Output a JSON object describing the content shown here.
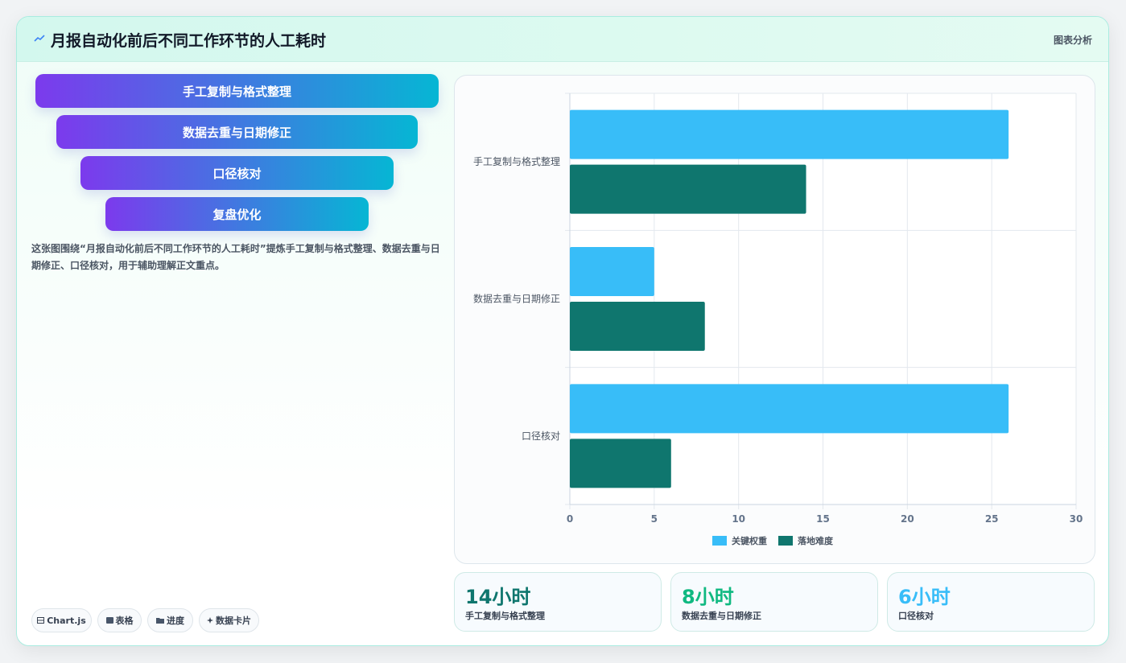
{
  "header": {
    "title": "月报自动化前后不同工作环节的人工耗时",
    "tag": "图表分析"
  },
  "funnel": {
    "items": [
      "手工复制与格式整理",
      "数据去重与日期修正",
      "口径核对",
      "复盘优化"
    ]
  },
  "description": "这张图围绕“月报自动化前后不同工作环节的人工耗时”提炼手工复制与格式整理、数据去重与日期修正、口径核对，用于辅助理解正文重点。",
  "footer_tags": [
    {
      "icon": "chart-icon",
      "label": "Chart.js"
    },
    {
      "icon": "table-icon",
      "label": "表格"
    },
    {
      "icon": "progress-icon",
      "label": "进度"
    },
    {
      "icon": "sparkle-icon",
      "label": "数据卡片"
    }
  ],
  "stats": [
    {
      "value": "14小时",
      "label": "手工复制与格式整理",
      "color": "#0f766e"
    },
    {
      "value": "8小时",
      "label": "数据去重与日期修正",
      "color": "#10b981"
    },
    {
      "value": "6小时",
      "label": "口径核对",
      "color": "#38bdf8"
    }
  ],
  "colors": {
    "series_1": "#38bdf8",
    "series_2": "#0f766e",
    "funnel_start": "#7c3aed",
    "funnel_end": "#06b6d4"
  },
  "chart_data": {
    "type": "bar",
    "orientation": "horizontal",
    "categories": [
      "手工复制与格式整理",
      "数据去重与日期修正",
      "口径核对"
    ],
    "series": [
      {
        "name": "关键权重",
        "values": [
          26,
          5,
          26
        ],
        "color": "#38bdf8"
      },
      {
        "name": "落地难度",
        "values": [
          14,
          8,
          6
        ],
        "color": "#0f766e"
      }
    ],
    "xlim": [
      0,
      30
    ],
    "xticks": [
      0,
      5,
      10,
      15,
      20,
      25,
      30
    ],
    "grid": true,
    "legend": "bottom"
  }
}
